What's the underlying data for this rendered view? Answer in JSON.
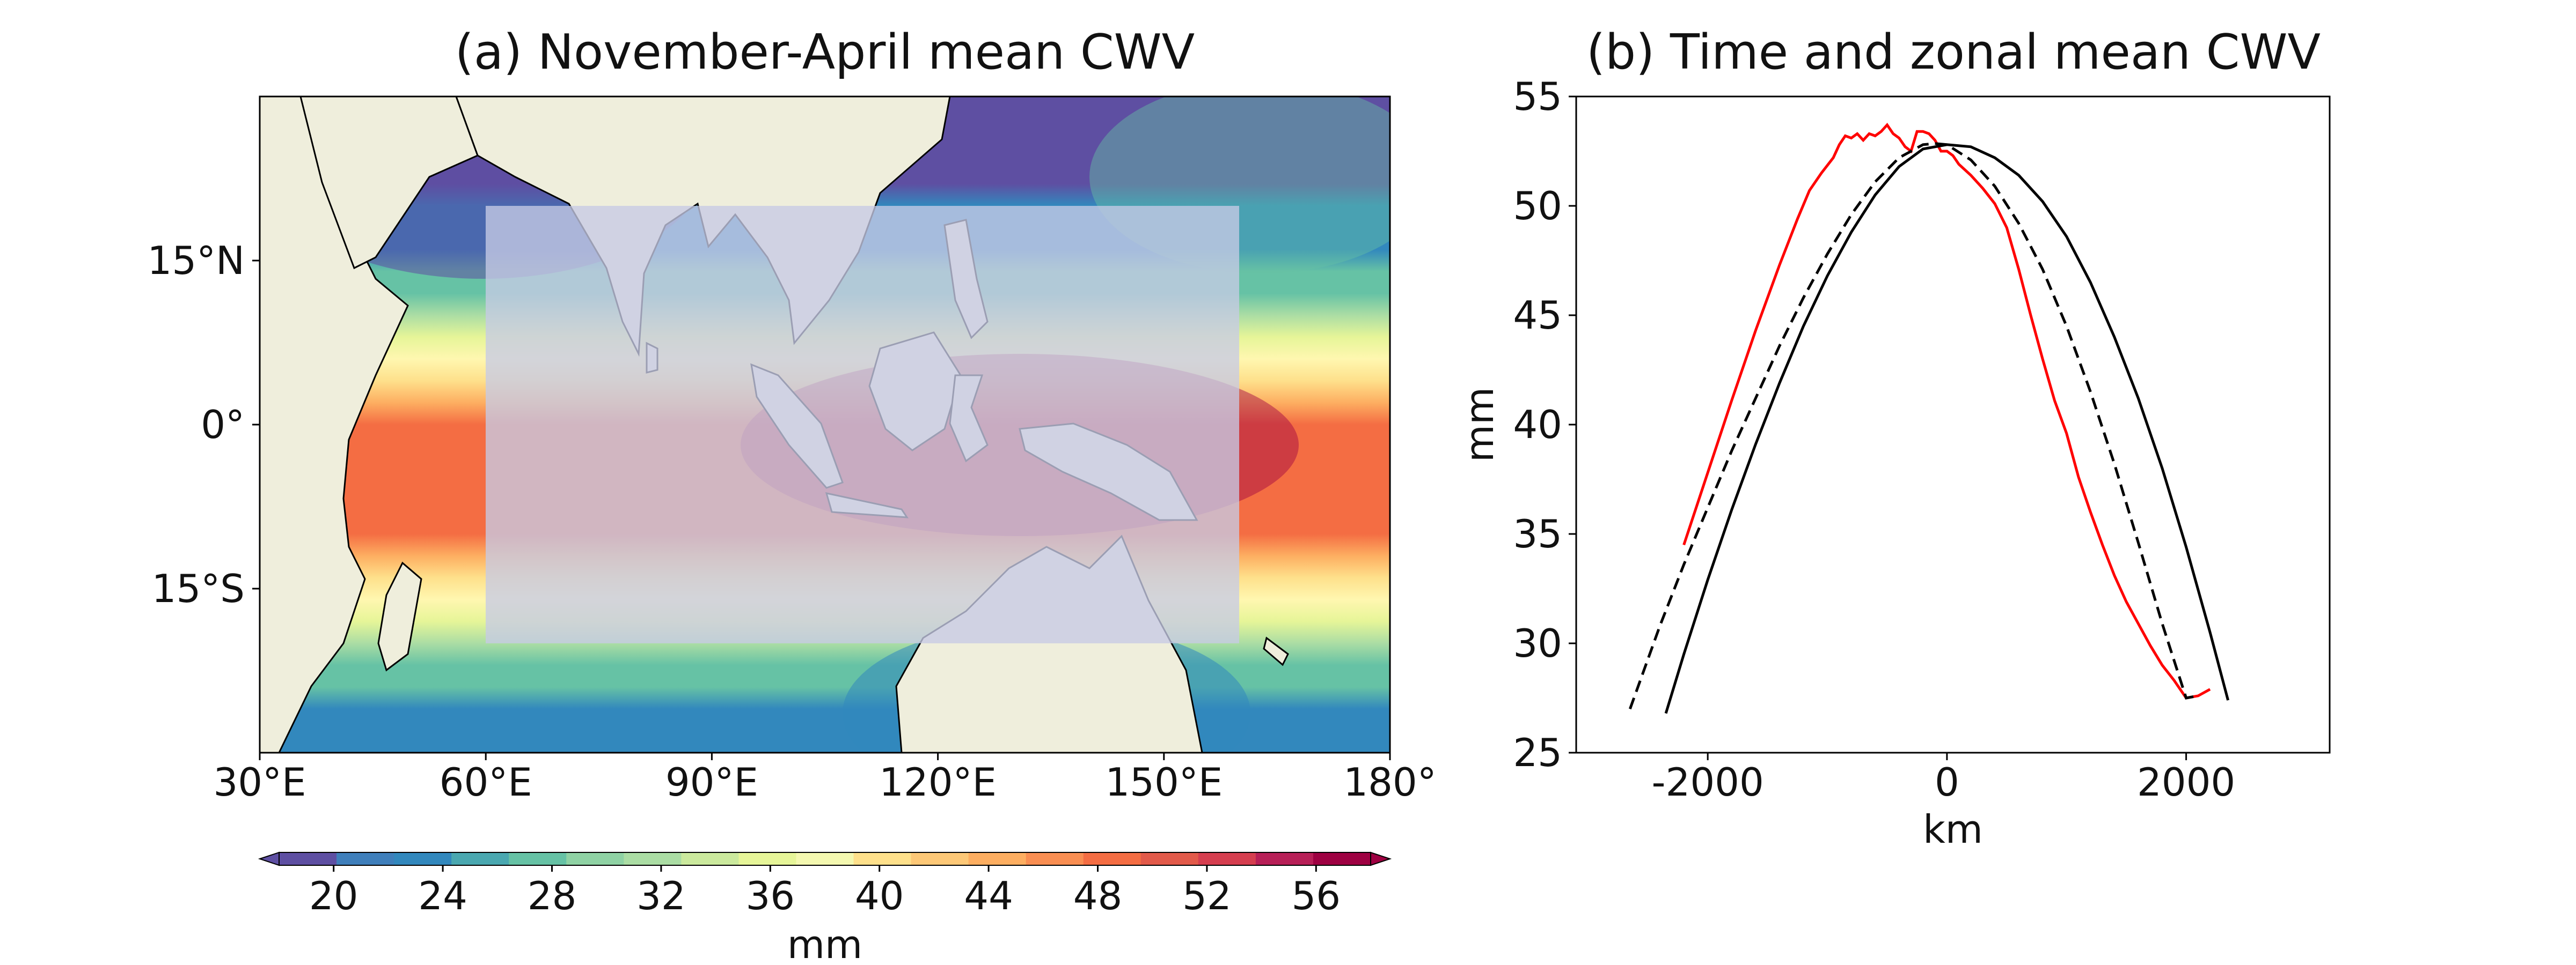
{
  "chart_data": [
    {
      "type": "heatmap",
      "title": "(a) November-April mean CWV",
      "x_ticks": [
        "30°E",
        "60°E",
        "90°E",
        "120°E",
        "150°E",
        "180°"
      ],
      "y_ticks": [
        "15°N",
        "0°",
        "15°S"
      ],
      "xlim": [
        30,
        180
      ],
      "ylim": [
        -30,
        30
      ],
      "highlight_box": {
        "lon": [
          60,
          160
        ],
        "lat": [
          -20,
          20
        ]
      },
      "colorbar": {
        "label": "mm",
        "ticks": [
          "20",
          "24",
          "28",
          "32",
          "36",
          "40",
          "44",
          "48",
          "52",
          "56"
        ],
        "range": [
          18,
          58
        ],
        "extend": "both",
        "colormap": "Spectral_r",
        "colors": [
          "#5e4fa2",
          "#3f7fbb",
          "#3288bd",
          "#4aa8b0",
          "#66c2a5",
          "#8fd2a4",
          "#abdda4",
          "#cbe99d",
          "#e6f598",
          "#f4f8b0",
          "#fee08b",
          "#fdc877",
          "#fdae61",
          "#f98e52",
          "#f46d43",
          "#e25a4a",
          "#d53e4f",
          "#b71f57",
          "#9e0142"
        ],
        "stops": [
          {
            "v": 18,
            "c": "#5e4fa2"
          },
          {
            "v": 23,
            "c": "#3288bd"
          },
          {
            "v": 28,
            "c": "#66c2a5"
          },
          {
            "v": 33,
            "c": "#abdda4"
          },
          {
            "v": 38,
            "c": "#e6f598"
          },
          {
            "v": 40,
            "c": "#fff7b0"
          },
          {
            "v": 43,
            "c": "#fee08b"
          },
          {
            "v": 47,
            "c": "#fdae61"
          },
          {
            "v": 51,
            "c": "#f46d43"
          },
          {
            "v": 55,
            "c": "#d53e4f"
          },
          {
            "v": 58,
            "c": "#9e0142"
          }
        ]
      },
      "land_color": "#efeedc",
      "box_fill": "#c7cbe6"
    },
    {
      "type": "line",
      "title": "(b) Time and zonal mean CWV",
      "xlabel": "km",
      "ylabel": "mm",
      "xlim": [
        -3100,
        3200
      ],
      "ylim": [
        25,
        55
      ],
      "x_ticks": [
        "-2000",
        "0",
        "2000"
      ],
      "y_ticks": [
        "25",
        "30",
        "35",
        "40",
        "45",
        "50",
        "55"
      ],
      "series": [
        {
          "style": "red-solid",
          "color": "#ff0000",
          "x": [
            -2200,
            -2000,
            -1800,
            -1600,
            -1400,
            -1250,
            -1150,
            -1050,
            -950,
            -900,
            -850,
            -800,
            -750,
            -700,
            -650,
            -600,
            -550,
            -500,
            -450,
            -400,
            -350,
            -300,
            -250,
            -200,
            -150,
            -100,
            -50,
            0,
            50,
            100,
            200,
            300,
            400,
            500,
            600,
            700,
            800,
            900,
            1000,
            1100,
            1200,
            1300,
            1400,
            1500,
            1600,
            1700,
            1800,
            1900,
            2000,
            2100,
            2200
          ],
          "y": [
            34.5,
            37.8,
            41.1,
            44.3,
            47.3,
            49.4,
            50.7,
            51.5,
            52.2,
            52.8,
            53.2,
            53.1,
            53.3,
            53.0,
            53.3,
            53.2,
            53.4,
            53.7,
            53.3,
            53.1,
            52.7,
            52.5,
            53.4,
            53.4,
            53.3,
            53.0,
            52.5,
            52.5,
            52.3,
            51.9,
            51.4,
            50.8,
            50.1,
            49.0,
            47.1,
            45.0,
            43.0,
            41.1,
            39.6,
            37.6,
            36.0,
            34.5,
            33.1,
            31.9,
            30.9,
            29.9,
            29.0,
            28.3,
            27.5,
            27.6,
            27.9
          ]
        },
        {
          "style": "black-dashed",
          "color": "#000000",
          "x": [
            -2650,
            -2400,
            -2200,
            -2000,
            -1800,
            -1600,
            -1400,
            -1200,
            -1000,
            -800,
            -600,
            -400,
            -200,
            -100,
            0,
            200,
            400,
            600,
            800,
            1000,
            1200,
            1400,
            1600,
            1800,
            2000,
            2100
          ],
          "y": [
            27.0,
            30.8,
            33.6,
            36.2,
            38.8,
            41.2,
            43.6,
            45.8,
            47.8,
            49.6,
            51.1,
            52.2,
            52.8,
            52.85,
            52.8,
            52.1,
            50.9,
            49.2,
            47.1,
            44.5,
            41.5,
            38.2,
            34.6,
            30.9,
            27.5,
            27.6
          ]
        },
        {
          "style": "black-solid",
          "color": "#000000",
          "x": [
            -2350,
            -2200,
            -2000,
            -1800,
            -1600,
            -1400,
            -1200,
            -1000,
            -800,
            -600,
            -400,
            -200,
            0,
            200,
            400,
            600,
            800,
            1000,
            1200,
            1400,
            1600,
            1800,
            2000,
            2200,
            2350
          ],
          "y": [
            26.8,
            29.5,
            32.9,
            36.1,
            39.1,
            41.9,
            44.5,
            46.8,
            48.8,
            50.5,
            51.8,
            52.6,
            52.8,
            52.7,
            52.2,
            51.4,
            50.2,
            48.6,
            46.5,
            44.0,
            41.2,
            38.0,
            34.4,
            30.5,
            27.4
          ]
        }
      ]
    }
  ]
}
